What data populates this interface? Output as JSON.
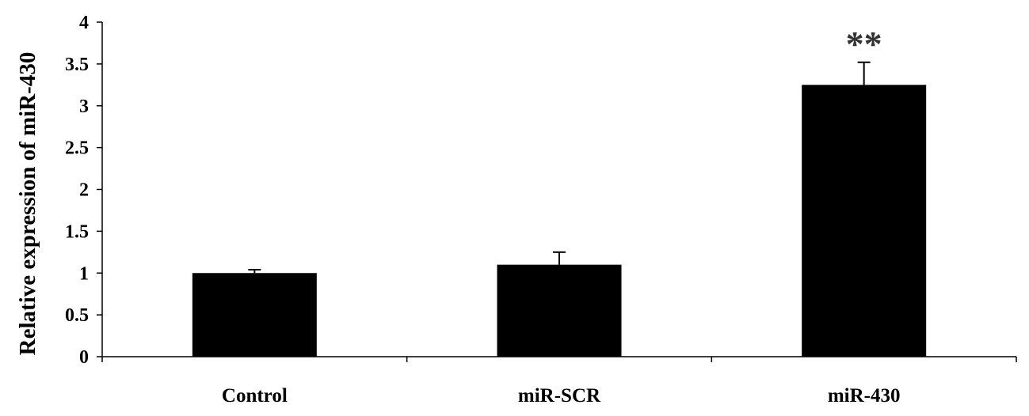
{
  "chart_data": {
    "type": "bar",
    "categories": [
      "Control",
      "miR-SCR",
      "miR-430"
    ],
    "values": [
      1.0,
      1.1,
      3.25
    ],
    "errors": [
      0.04,
      0.15,
      0.27
    ],
    "annotations": [
      "",
      "",
      "**"
    ],
    "ylabel": "Relative expression of miR-430",
    "xlabel": "",
    "ylim": [
      0,
      4
    ],
    "yticks": [
      "0",
      "0.5",
      "1",
      "1.5",
      "2",
      "2.5",
      "3",
      "3.5",
      "4"
    ],
    "grid": false,
    "bar_color": "#000000"
  }
}
